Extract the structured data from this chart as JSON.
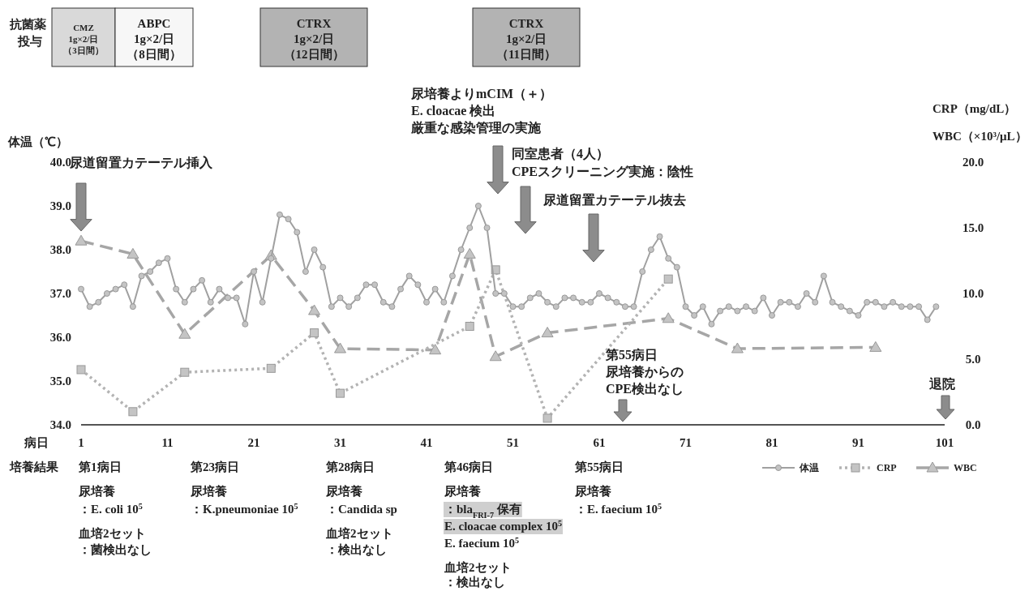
{
  "chart_data": {
    "type": "line",
    "xlabel": "病日",
    "ylabel": "体温（℃）",
    "y2label": "CRP（mg/dL）\nWBC（×10³/μL）",
    "xlim": [
      1,
      101
    ],
    "xticks": [
      1,
      11,
      21,
      31,
      41,
      51,
      61,
      71,
      81,
      91,
      101
    ],
    "ylim": [
      34,
      40
    ],
    "yticks": [
      {
        "value": 34,
        "label": "34.0"
      },
      {
        "value": 35,
        "label": "35.0"
      },
      {
        "value": 36,
        "label": "36.0"
      },
      {
        "value": 37,
        "label": "37.0"
      },
      {
        "value": 38,
        "label": "38.0"
      },
      {
        "value": 39,
        "label": "39.0"
      },
      {
        "value": 40,
        "label": "40.0"
      }
    ],
    "y2lim": [
      0,
      20
    ],
    "y2ticks": [
      {
        "value": 0,
        "label": "0.0"
      },
      {
        "value": 5,
        "label": "5.0"
      },
      {
        "value": 10,
        "label": "10.0"
      },
      {
        "value": 15,
        "label": "15.0"
      },
      {
        "value": 20,
        "label": "20.0"
      }
    ],
    "legend": "bottom right",
    "series": [
      {
        "name": "WBC",
        "axis": "y2",
        "color": "#a6a6a6",
        "marker": "triangle",
        "line_style": "dashed",
        "x": [
          1,
          7,
          13,
          23,
          28,
          31,
          42,
          46,
          49,
          55,
          69,
          77,
          93
        ],
        "values": [
          14.0,
          13.0,
          6.9,
          12.9,
          8.7,
          5.8,
          5.7,
          13.0,
          5.2,
          7.0,
          8.1,
          5.8,
          5.9
        ]
      },
      {
        "name": "CRP",
        "axis": "y2",
        "color": "#b3b3b3",
        "marker": "square",
        "line_style": "dotted",
        "x": [
          1,
          7,
          13,
          23,
          28,
          31,
          46,
          49,
          55,
          69
        ],
        "values": [
          4.2,
          1.0,
          4.0,
          4.3,
          7.0,
          2.4,
          7.5,
          11.8,
          0.5,
          11.1
        ]
      },
      {
        "name": "体温",
        "color": "#a0a0a0",
        "marker": "circle",
        "line_style": "solid",
        "x": [
          1,
          2,
          3,
          4,
          5,
          6,
          7,
          8,
          9,
          10,
          11,
          12,
          13,
          14,
          15,
          16,
          17,
          18,
          19,
          20,
          21,
          22,
          23,
          24,
          25,
          26,
          27,
          28,
          29,
          30,
          31,
          32,
          33,
          34,
          35,
          36,
          37,
          38,
          39,
          40,
          41,
          42,
          43,
          44,
          45,
          46,
          47,
          48,
          49,
          50,
          51,
          52,
          53,
          54,
          55,
          56,
          57,
          58,
          59,
          60,
          61,
          62,
          63,
          64,
          65,
          66,
          67,
          68,
          69,
          70,
          71,
          72,
          73,
          74,
          75,
          76,
          77,
          78,
          79,
          80,
          81,
          82,
          83,
          84,
          85,
          86,
          87,
          88,
          89,
          90,
          91,
          92,
          93,
          94,
          95,
          96,
          97,
          98,
          99,
          100
        ],
        "values": [
          37.1,
          36.7,
          36.8,
          37.0,
          37.1,
          37.2,
          36.7,
          37.4,
          37.5,
          37.7,
          37.8,
          37.1,
          36.8,
          37.1,
          37.3,
          36.8,
          37.1,
          36.9,
          36.9,
          36.3,
          37.5,
          36.8,
          37.8,
          38.8,
          38.7,
          38.4,
          37.5,
          38.0,
          37.6,
          36.7,
          36.9,
          36.7,
          36.9,
          37.2,
          37.2,
          36.8,
          36.7,
          37.1,
          37.4,
          37.2,
          36.8,
          37.1,
          36.8,
          37.4,
          38.0,
          38.5,
          39.0,
          38.5,
          37.0,
          37.0,
          36.7,
          36.7,
          36.9,
          37.0,
          36.8,
          36.7,
          36.9,
          36.9,
          36.8,
          36.8,
          37.0,
          36.9,
          36.8,
          36.7,
          36.7,
          37.5,
          38.0,
          38.3,
          37.8,
          37.6,
          36.7,
          36.5,
          36.7,
          36.3,
          36.6,
          36.7,
          36.6,
          36.7,
          36.6,
          36.9,
          36.5,
          36.8,
          36.8,
          36.7,
          37.0,
          36.8,
          37.4,
          36.8,
          36.7,
          36.6,
          36.5,
          36.8,
          36.8,
          36.7,
          36.8,
          36.7,
          36.7,
          36.7,
          36.4,
          36.7
        ]
      }
    ],
    "annotations": [
      "尿道留置カテーテル挿入",
      "尿培養よりmCIM（＋）",
      "E. cloacae 検出",
      "厳重な感染管理の実施",
      "同室患者（4人）",
      "CPEスクリーニング実施：陰性",
      "尿道留置カテーテル抜去",
      "第55病日",
      "尿培養からの",
      "CPE検出なし",
      "退院",
      "抗菌薬",
      "投与",
      "CMZ",
      "1g×2/日",
      "（3日間）",
      "ABPC",
      "1g×2/日",
      "（8日間）",
      "CTRX",
      "1g×2/日",
      "（12日間）",
      "CTRX",
      "1g×2/日",
      "（11日間）",
      "培養結果",
      "第1病日",
      "尿培養",
      "：E. coli 10$^{5}$",
      "血培2セット",
      "：菌検出なし",
      "第23病日",
      "尿培養",
      "：K.pneumoniae 10$^{5}$",
      "第28病日",
      "尿培養",
      "：Candida sp",
      "血培2セット",
      "：検出なし",
      "第46病日",
      "尿培養",
      "：bla$_{FRI-7}$ 保有",
      "E. cloacae complex 10$^{5}$",
      "E. faecium 10$^{5}$",
      "血培2セット",
      "：検出なし",
      "第55病日",
      "尿培養",
      "：E. faecium 10$^{5}$"
    ]
  }
}
